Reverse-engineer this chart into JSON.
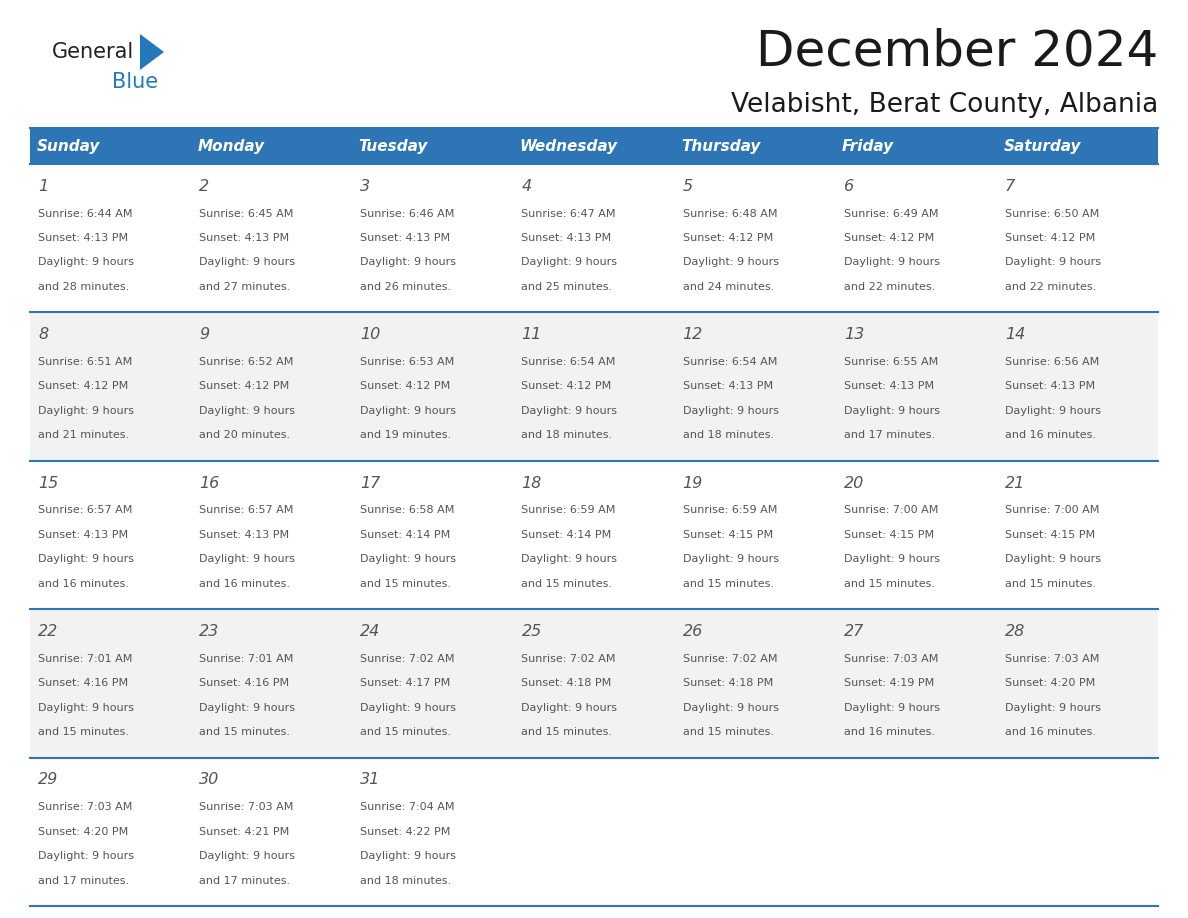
{
  "title": "December 2024",
  "subtitle": "Velabisht, Berat County, Albania",
  "header_bg": "#2E75B6",
  "header_text_color": "#FFFFFF",
  "header_font_size": 11,
  "day_names": [
    "Sunday",
    "Monday",
    "Tuesday",
    "Wednesday",
    "Thursday",
    "Friday",
    "Saturday"
  ],
  "title_font_size": 36,
  "subtitle_font_size": 19,
  "cell_bg_odd": "#F2F2F2",
  "cell_bg_even": "#FFFFFF",
  "cell_border_color": "#2E75B6",
  "day_number_color": "#555555",
  "text_color": "#555555",
  "logo_general_color": "#222222",
  "logo_blue_color": "#2479BD",
  "weeks": [
    [
      {
        "day": 1,
        "sunrise": "6:44 AM",
        "sunset": "4:13 PM",
        "daylight": "9 hours and 28 minutes."
      },
      {
        "day": 2,
        "sunrise": "6:45 AM",
        "sunset": "4:13 PM",
        "daylight": "9 hours and 27 minutes."
      },
      {
        "day": 3,
        "sunrise": "6:46 AM",
        "sunset": "4:13 PM",
        "daylight": "9 hours and 26 minutes."
      },
      {
        "day": 4,
        "sunrise": "6:47 AM",
        "sunset": "4:13 PM",
        "daylight": "9 hours and 25 minutes."
      },
      {
        "day": 5,
        "sunrise": "6:48 AM",
        "sunset": "4:12 PM",
        "daylight": "9 hours and 24 minutes."
      },
      {
        "day": 6,
        "sunrise": "6:49 AM",
        "sunset": "4:12 PM",
        "daylight": "9 hours and 22 minutes."
      },
      {
        "day": 7,
        "sunrise": "6:50 AM",
        "sunset": "4:12 PM",
        "daylight": "9 hours and 22 minutes."
      }
    ],
    [
      {
        "day": 8,
        "sunrise": "6:51 AM",
        "sunset": "4:12 PM",
        "daylight": "9 hours and 21 minutes."
      },
      {
        "day": 9,
        "sunrise": "6:52 AM",
        "sunset": "4:12 PM",
        "daylight": "9 hours and 20 minutes."
      },
      {
        "day": 10,
        "sunrise": "6:53 AM",
        "sunset": "4:12 PM",
        "daylight": "9 hours and 19 minutes."
      },
      {
        "day": 11,
        "sunrise": "6:54 AM",
        "sunset": "4:12 PM",
        "daylight": "9 hours and 18 minutes."
      },
      {
        "day": 12,
        "sunrise": "6:54 AM",
        "sunset": "4:13 PM",
        "daylight": "9 hours and 18 minutes."
      },
      {
        "day": 13,
        "sunrise": "6:55 AM",
        "sunset": "4:13 PM",
        "daylight": "9 hours and 17 minutes."
      },
      {
        "day": 14,
        "sunrise": "6:56 AM",
        "sunset": "4:13 PM",
        "daylight": "9 hours and 16 minutes."
      }
    ],
    [
      {
        "day": 15,
        "sunrise": "6:57 AM",
        "sunset": "4:13 PM",
        "daylight": "9 hours and 16 minutes."
      },
      {
        "day": 16,
        "sunrise": "6:57 AM",
        "sunset": "4:13 PM",
        "daylight": "9 hours and 16 minutes."
      },
      {
        "day": 17,
        "sunrise": "6:58 AM",
        "sunset": "4:14 PM",
        "daylight": "9 hours and 15 minutes."
      },
      {
        "day": 18,
        "sunrise": "6:59 AM",
        "sunset": "4:14 PM",
        "daylight": "9 hours and 15 minutes."
      },
      {
        "day": 19,
        "sunrise": "6:59 AM",
        "sunset": "4:15 PM",
        "daylight": "9 hours and 15 minutes."
      },
      {
        "day": 20,
        "sunrise": "7:00 AM",
        "sunset": "4:15 PM",
        "daylight": "9 hours and 15 minutes."
      },
      {
        "day": 21,
        "sunrise": "7:00 AM",
        "sunset": "4:15 PM",
        "daylight": "9 hours and 15 minutes."
      }
    ],
    [
      {
        "day": 22,
        "sunrise": "7:01 AM",
        "sunset": "4:16 PM",
        "daylight": "9 hours and 15 minutes."
      },
      {
        "day": 23,
        "sunrise": "7:01 AM",
        "sunset": "4:16 PM",
        "daylight": "9 hours and 15 minutes."
      },
      {
        "day": 24,
        "sunrise": "7:02 AM",
        "sunset": "4:17 PM",
        "daylight": "9 hours and 15 minutes."
      },
      {
        "day": 25,
        "sunrise": "7:02 AM",
        "sunset": "4:18 PM",
        "daylight": "9 hours and 15 minutes."
      },
      {
        "day": 26,
        "sunrise": "7:02 AM",
        "sunset": "4:18 PM",
        "daylight": "9 hours and 15 minutes."
      },
      {
        "day": 27,
        "sunrise": "7:03 AM",
        "sunset": "4:19 PM",
        "daylight": "9 hours and 16 minutes."
      },
      {
        "day": 28,
        "sunrise": "7:03 AM",
        "sunset": "4:20 PM",
        "daylight": "9 hours and 16 minutes."
      }
    ],
    [
      {
        "day": 29,
        "sunrise": "7:03 AM",
        "sunset": "4:20 PM",
        "daylight": "9 hours and 17 minutes."
      },
      {
        "day": 30,
        "sunrise": "7:03 AM",
        "sunset": "4:21 PM",
        "daylight": "9 hours and 17 minutes."
      },
      {
        "day": 31,
        "sunrise": "7:04 AM",
        "sunset": "4:22 PM",
        "daylight": "9 hours and 18 minutes."
      },
      null,
      null,
      null,
      null
    ]
  ]
}
